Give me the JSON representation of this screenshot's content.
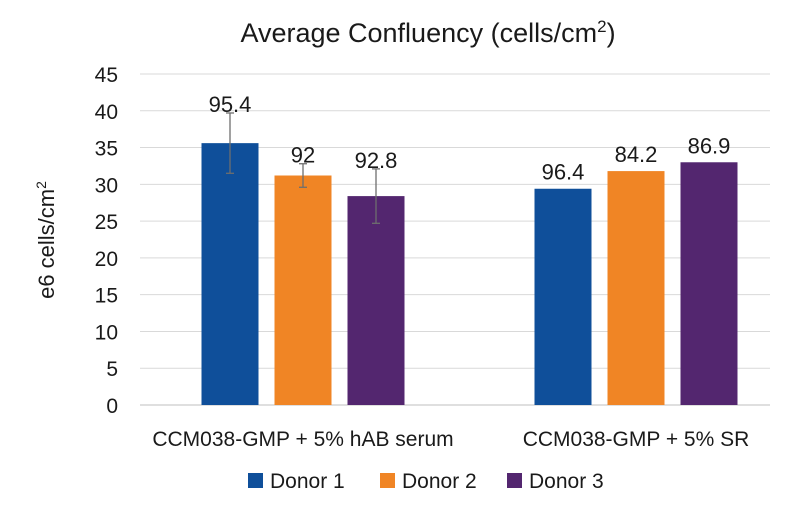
{
  "chart_data": {
    "type": "bar",
    "title": "Average Confluency (cells/cm",
    "title_sup": "2",
    "title_end": ")",
    "ylabel": "e6 cells/cm",
    "ylabel_sup": "2",
    "xlabel": "",
    "ylim": [
      0,
      45
    ],
    "yticks": [
      0,
      5,
      10,
      15,
      20,
      25,
      30,
      35,
      40,
      45
    ],
    "grid": true,
    "legend_position": "bottom",
    "categories": [
      "CCM038-GMP + 5% hAB serum",
      "CCM038-GMP + 5% SR"
    ],
    "series": [
      {
        "name": "Donor 1",
        "color": "#0f4f9a",
        "values": [
          35.6,
          29.4
        ],
        "errors": [
          4.1,
          null
        ],
        "labels": [
          "95.4",
          "96.4"
        ]
      },
      {
        "name": "Donor 2",
        "color": "#f08525",
        "values": [
          31.2,
          31.8
        ],
        "errors": [
          1.6,
          null
        ],
        "labels": [
          "92",
          "84.2"
        ]
      },
      {
        "name": "Donor 3",
        "color": "#53266f",
        "values": [
          28.4,
          33.0
        ],
        "errors": [
          3.7,
          null
        ],
        "labels": [
          "92.8",
          "86.9"
        ]
      }
    ]
  }
}
